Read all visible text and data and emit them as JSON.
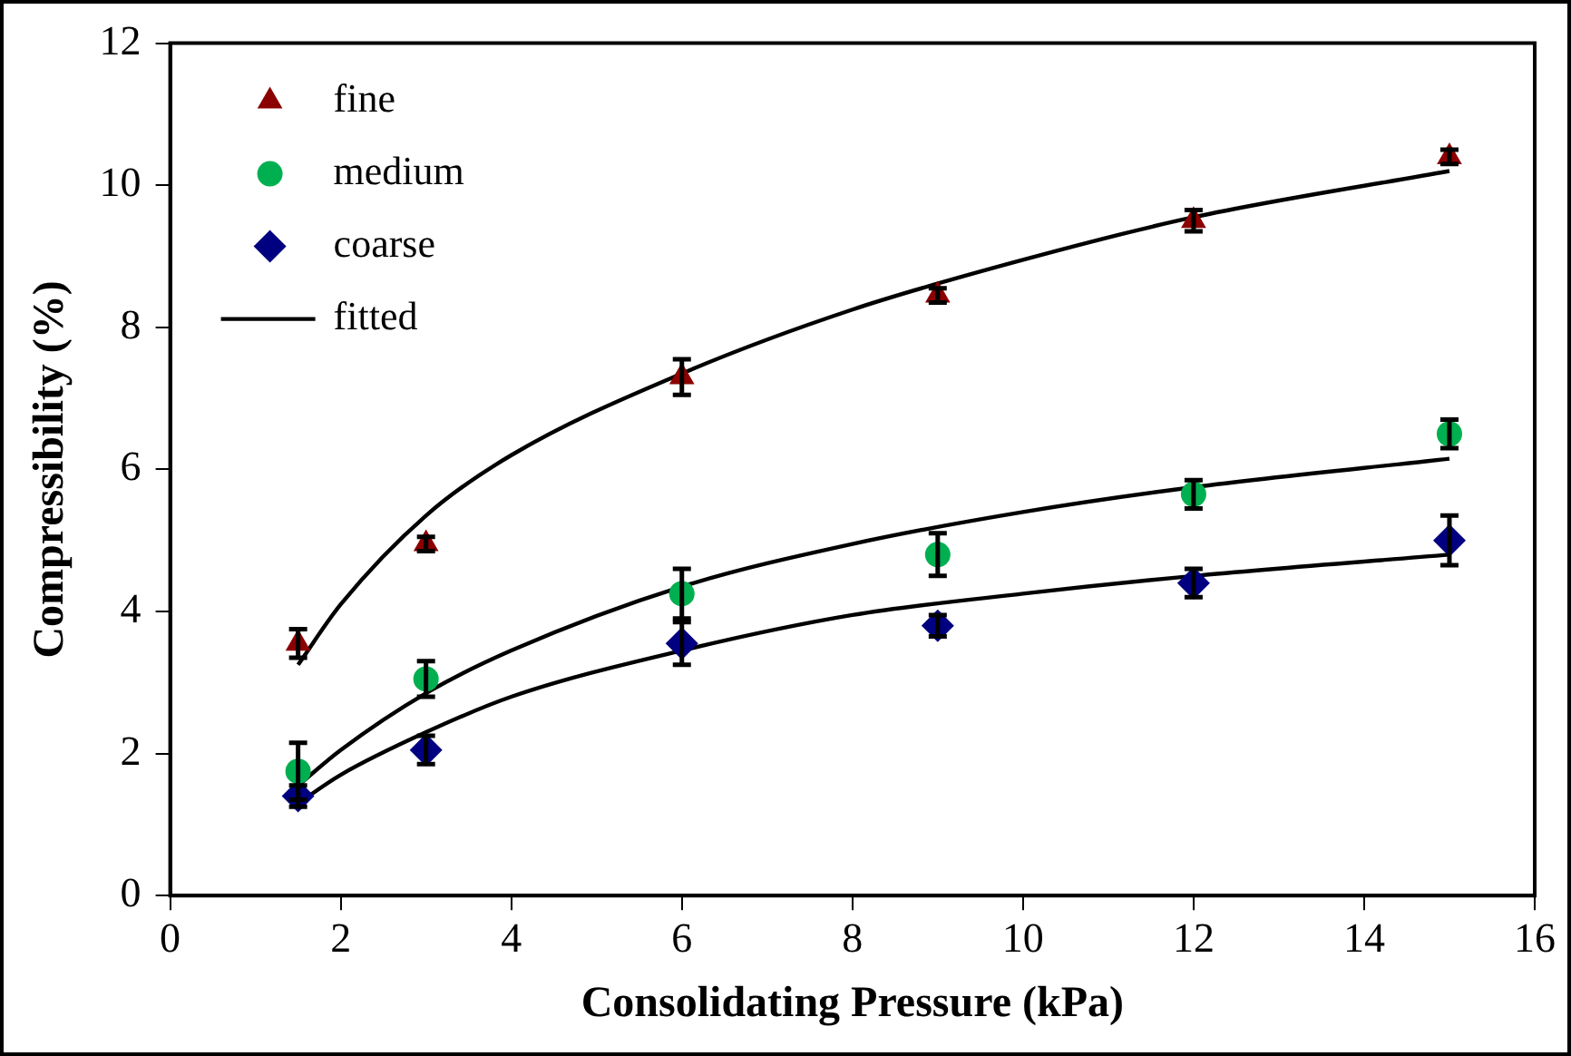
{
  "chart_data": {
    "type": "scatter",
    "xlabel": "Consolidating Pressure (kPa)",
    "ylabel": "Compressibility (%)",
    "xlim": [
      0,
      16
    ],
    "xticks": [
      0,
      2,
      4,
      6,
      8,
      10,
      12,
      14,
      16
    ],
    "ylim": [
      0,
      12
    ],
    "yticks": [
      0,
      2,
      4,
      6,
      8,
      10,
      12
    ],
    "grid": false,
    "legend": "top left",
    "series": [
      {
        "name": "fine",
        "marker": "triangle",
        "color": "#8b0000",
        "x": [
          1.5,
          3,
          6,
          9,
          12,
          15
        ],
        "values": [
          3.55,
          4.95,
          7.3,
          8.45,
          9.5,
          10.4
        ],
        "errors": [
          0.2,
          0.1,
          0.25,
          0.1,
          0.15,
          0.1
        ]
      },
      {
        "name": "medium",
        "marker": "circle",
        "color": "#00b050",
        "x": [
          1.5,
          3,
          6,
          9,
          12,
          15
        ],
        "values": [
          1.75,
          3.05,
          4.25,
          4.8,
          5.65,
          6.5
        ],
        "errors": [
          0.4,
          0.25,
          0.35,
          0.3,
          0.2,
          0.2
        ]
      },
      {
        "name": "coarse",
        "marker": "diamond",
        "color": "#000080",
        "x": [
          1.5,
          3,
          6,
          9,
          12,
          15
        ],
        "values": [
          1.4,
          2.05,
          3.55,
          3.8,
          4.4,
          5.0
        ],
        "errors": [
          0.15,
          0.2,
          0.3,
          0.15,
          0.2,
          0.35
        ]
      },
      {
        "name": "fitted",
        "type": "line",
        "marker": "none",
        "color": "#000000",
        "x": [
          1.5,
          2,
          3,
          4,
          6,
          8,
          10,
          12,
          15
        ],
        "values": [
          3.25,
          4.1,
          5.35,
          6.2,
          7.35,
          8.25,
          8.95,
          9.55,
          10.2
        ]
      },
      {
        "type": "line",
        "marker": "none",
        "color": "#000000",
        "x": [
          1.5,
          2,
          3,
          4,
          6,
          8,
          10,
          12,
          15
        ],
        "values": [
          1.55,
          2.05,
          2.85,
          3.45,
          4.35,
          4.95,
          5.4,
          5.75,
          6.15
        ]
      },
      {
        "type": "line",
        "marker": "none",
        "color": "#000000",
        "x": [
          1.5,
          2,
          3,
          4,
          6,
          8,
          10,
          12,
          15
        ],
        "values": [
          1.3,
          1.7,
          2.3,
          2.8,
          3.45,
          3.95,
          4.25,
          4.5,
          4.8
        ]
      }
    ]
  }
}
